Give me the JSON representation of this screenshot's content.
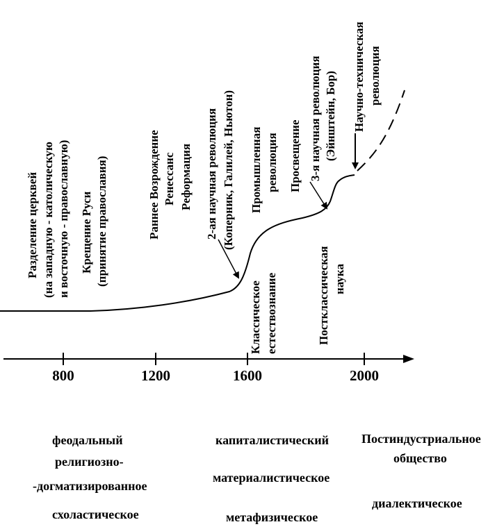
{
  "axis": {
    "ticks": [
      "800",
      "1200",
      "1600",
      "2000"
    ]
  },
  "annotations": {
    "schism": [
      "Разделение церквей",
      "(на западную - католическую",
      "и восточную - православную)",
      "Крещение Руси",
      "(принятие православия)"
    ],
    "renaissance": [
      "Раннее Возрождение",
      "Ренессанс",
      "Реформация"
    ],
    "second_revolution": [
      "2-ая научная революция",
      "(Коперник, Галилей, Ньютон)"
    ],
    "industrial": [
      "Промышленная",
      "революция"
    ],
    "third_revolution": [
      "Просвещение",
      "3-я научная революция",
      "(Эйнштейн, Бор)"
    ],
    "scitech": [
      "Научно-техническая",
      "революция"
    ],
    "classical": [
      "Классическое",
      "естествознание"
    ],
    "postclassical": [
      "Постклассическая",
      "наука"
    ]
  },
  "bottom": {
    "feudal": "феодальный",
    "religious": "религиозно-",
    "dogmatic": "-догматизированное",
    "scholastic": "схоластическое",
    "capitalist": "капиталистический",
    "materialist": "материалистическое",
    "metaphysical": "метафизическое",
    "postindustrial": "Постиндустриальное",
    "society": "общество",
    "dialectical": "диалектическое"
  }
}
